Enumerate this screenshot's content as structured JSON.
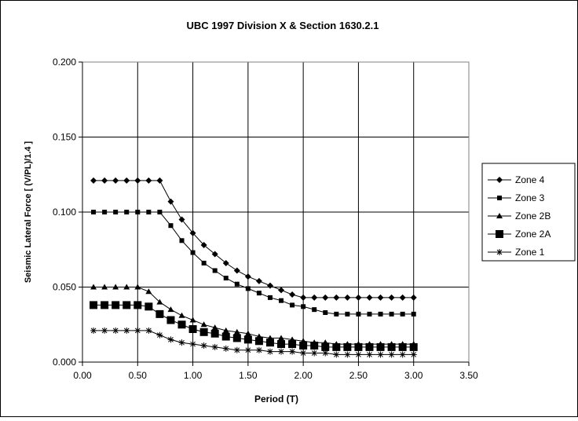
{
  "chart_data": {
    "type": "line",
    "title": "UBC 1997 Division X & Section 1630.2.1",
    "xlabel": "Period (T)",
    "ylabel": "Seismic Lateral Force [ (V/PL)/1.4 ]",
    "xlim": [
      0,
      3.5
    ],
    "ylim": [
      0,
      0.2
    ],
    "x_ticks": [
      "0.00",
      "0.50",
      "1.00",
      "1.50",
      "2.00",
      "2.50",
      "3.00",
      "3.50"
    ],
    "y_ticks": [
      "0.000",
      "0.050",
      "0.100",
      "0.150",
      "0.200"
    ],
    "grid": true,
    "legend_position": "right",
    "x": [
      0.1,
      0.2,
      0.3,
      0.4,
      0.5,
      0.6,
      0.7,
      0.8,
      0.9,
      1.0,
      1.1,
      1.2,
      1.3,
      1.4,
      1.5,
      1.6,
      1.7,
      1.8,
      1.9,
      2.0,
      2.1,
      2.2,
      2.3,
      2.4,
      2.5,
      2.6,
      2.7,
      2.8,
      2.9,
      3.0
    ],
    "series": [
      {
        "name": "Zone 4",
        "marker": "diamond",
        "values": [
          0.121,
          0.121,
          0.121,
          0.121,
          0.121,
          0.121,
          0.121,
          0.107,
          0.095,
          0.086,
          0.078,
          0.072,
          0.066,
          0.061,
          0.057,
          0.054,
          0.051,
          0.048,
          0.045,
          0.043,
          0.043,
          0.043,
          0.043,
          0.043,
          0.043,
          0.043,
          0.043,
          0.043,
          0.043,
          0.043
        ]
      },
      {
        "name": "Zone 3",
        "marker": "square-small",
        "values": [
          0.1,
          0.1,
          0.1,
          0.1,
          0.1,
          0.1,
          0.1,
          0.091,
          0.081,
          0.073,
          0.066,
          0.061,
          0.056,
          0.052,
          0.049,
          0.046,
          0.043,
          0.041,
          0.038,
          0.037,
          0.035,
          0.033,
          0.032,
          0.032,
          0.032,
          0.032,
          0.032,
          0.032,
          0.032,
          0.032
        ]
      },
      {
        "name": "Zone 2B",
        "marker": "triangle",
        "values": [
          0.05,
          0.05,
          0.05,
          0.05,
          0.05,
          0.047,
          0.04,
          0.035,
          0.031,
          0.028,
          0.025,
          0.023,
          0.021,
          0.02,
          0.019,
          0.017,
          0.016,
          0.016,
          0.015,
          0.014,
          0.013,
          0.013,
          0.012,
          0.012,
          0.012,
          0.012,
          0.012,
          0.012,
          0.012,
          0.012
        ]
      },
      {
        "name": "Zone 2A",
        "marker": "square-large",
        "values": [
          0.038,
          0.038,
          0.038,
          0.038,
          0.038,
          0.037,
          0.032,
          0.028,
          0.025,
          0.022,
          0.02,
          0.019,
          0.017,
          0.016,
          0.015,
          0.014,
          0.013,
          0.012,
          0.012,
          0.011,
          0.011,
          0.01,
          0.01,
          0.01,
          0.01,
          0.01,
          0.01,
          0.01,
          0.01,
          0.01
        ]
      },
      {
        "name": "Zone 1",
        "marker": "star",
        "values": [
          0.021,
          0.021,
          0.021,
          0.021,
          0.021,
          0.021,
          0.018,
          0.015,
          0.013,
          0.012,
          0.011,
          0.01,
          0.009,
          0.008,
          0.008,
          0.008,
          0.007,
          0.007,
          0.007,
          0.006,
          0.006,
          0.006,
          0.005,
          0.005,
          0.005,
          0.005,
          0.005,
          0.005,
          0.005,
          0.005
        ]
      }
    ]
  }
}
